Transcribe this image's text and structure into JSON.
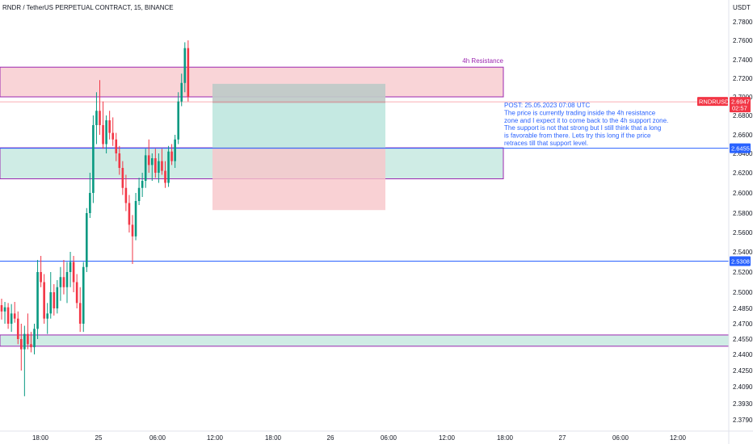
{
  "chart_data": {
    "type": "candlestick",
    "title": "RNDR / TetherUS PERPETUAL CONTRACT, 15, BINANCE",
    "currency_label": "USDT",
    "ylim": [
      2.37,
      2.79
    ],
    "price_ticks": [
      "2.7800",
      "2.7600",
      "2.7400",
      "2.7200",
      "2.7000",
      "2.6800",
      "2.6600",
      "2.6400",
      "2.6200",
      "2.6000",
      "2.5800",
      "2.5600",
      "2.5400",
      "2.5200",
      "2.5000",
      "2.4850",
      "2.4700",
      "2.4550",
      "2.4400",
      "2.4250",
      "2.4090",
      "2.3930",
      "2.3790"
    ],
    "time_ticks": [
      "18:00",
      "25",
      "06:00",
      "12:00",
      "18:00",
      "26",
      "06:00",
      "12:00",
      "18:00",
      "27",
      "06:00",
      "12:00"
    ],
    "grid": false,
    "candles": [
      {
        "o": 2.488,
        "h": 2.494,
        "l": 2.474,
        "c": 2.482
      },
      {
        "o": 2.482,
        "h": 2.491,
        "l": 2.47,
        "c": 2.486
      },
      {
        "o": 2.486,
        "h": 2.49,
        "l": 2.465,
        "c": 2.47
      },
      {
        "o": 2.47,
        "h": 2.489,
        "l": 2.462,
        "c": 2.48
      },
      {
        "o": 2.48,
        "h": 2.491,
        "l": 2.471,
        "c": 2.475
      },
      {
        "o": 2.475,
        "h": 2.482,
        "l": 2.45,
        "c": 2.455
      },
      {
        "o": 2.455,
        "h": 2.47,
        "l": 2.425,
        "c": 2.445
      },
      {
        "o": 2.445,
        "h": 2.468,
        "l": 2.4,
        "c": 2.46
      },
      {
        "o": 2.46,
        "h": 2.48,
        "l": 2.445,
        "c": 2.45
      },
      {
        "o": 2.45,
        "h": 2.462,
        "l": 2.442,
        "c": 2.447
      },
      {
        "o": 2.447,
        "h": 2.47,
        "l": 2.44,
        "c": 2.465
      },
      {
        "o": 2.465,
        "h": 2.532,
        "l": 2.455,
        "c": 2.52
      },
      {
        "o": 2.52,
        "h": 2.536,
        "l": 2.505,
        "c": 2.51
      },
      {
        "o": 2.51,
        "h": 2.518,
        "l": 2.47,
        "c": 2.475
      },
      {
        "o": 2.475,
        "h": 2.49,
        "l": 2.46,
        "c": 2.48
      },
      {
        "o": 2.48,
        "h": 2.52,
        "l": 2.475,
        "c": 2.5
      },
      {
        "o": 2.5,
        "h": 2.508,
        "l": 2.478,
        "c": 2.485
      },
      {
        "o": 2.485,
        "h": 2.512,
        "l": 2.48,
        "c": 2.505
      },
      {
        "o": 2.505,
        "h": 2.525,
        "l": 2.492,
        "c": 2.515
      },
      {
        "o": 2.515,
        "h": 2.532,
        "l": 2.498,
        "c": 2.505
      },
      {
        "o": 2.505,
        "h": 2.53,
        "l": 2.49,
        "c": 2.52
      },
      {
        "o": 2.52,
        "h": 2.54,
        "l": 2.505,
        "c": 2.53
      },
      {
        "o": 2.53,
        "h": 2.536,
        "l": 2.5,
        "c": 2.51
      },
      {
        "o": 2.51,
        "h": 2.518,
        "l": 2.485,
        "c": 2.49
      },
      {
        "o": 2.49,
        "h": 2.505,
        "l": 2.462,
        "c": 2.47
      },
      {
        "o": 2.47,
        "h": 2.53,
        "l": 2.462,
        "c": 2.525
      },
      {
        "o": 2.525,
        "h": 2.585,
        "l": 2.52,
        "c": 2.58
      },
      {
        "o": 2.58,
        "h": 2.62,
        "l": 2.575,
        "c": 2.6
      },
      {
        "o": 2.6,
        "h": 2.68,
        "l": 2.59,
        "c": 2.67
      },
      {
        "o": 2.67,
        "h": 2.705,
        "l": 2.65,
        "c": 2.685
      },
      {
        "o": 2.685,
        "h": 2.718,
        "l": 2.66,
        "c": 2.67
      },
      {
        "o": 2.67,
        "h": 2.695,
        "l": 2.645,
        "c": 2.65
      },
      {
        "o": 2.65,
        "h": 2.68,
        "l": 2.64,
        "c": 2.675
      },
      {
        "o": 2.675,
        "h": 2.685,
        "l": 2.655,
        "c": 2.662
      },
      {
        "o": 2.662,
        "h": 2.678,
        "l": 2.648,
        "c": 2.655
      },
      {
        "o": 2.655,
        "h": 2.662,
        "l": 2.632,
        "c": 2.64
      },
      {
        "o": 2.64,
        "h": 2.648,
        "l": 2.618,
        "c": 2.625
      },
      {
        "o": 2.625,
        "h": 2.632,
        "l": 2.598,
        "c": 2.605
      },
      {
        "o": 2.605,
        "h": 2.618,
        "l": 2.582,
        "c": 2.59
      },
      {
        "o": 2.59,
        "h": 2.598,
        "l": 2.56,
        "c": 2.568
      },
      {
        "o": 2.568,
        "h": 2.578,
        "l": 2.528,
        "c": 2.556
      },
      {
        "o": 2.556,
        "h": 2.6,
        "l": 2.552,
        "c": 2.592
      },
      {
        "o": 2.592,
        "h": 2.615,
        "l": 2.588,
        "c": 2.605
      },
      {
        "o": 2.605,
        "h": 2.62,
        "l": 2.596,
        "c": 2.612
      },
      {
        "o": 2.612,
        "h": 2.645,
        "l": 2.605,
        "c": 2.638
      },
      {
        "o": 2.638,
        "h": 2.655,
        "l": 2.62,
        "c": 2.628
      },
      {
        "o": 2.628,
        "h": 2.64,
        "l": 2.612,
        "c": 2.635
      },
      {
        "o": 2.635,
        "h": 2.645,
        "l": 2.615,
        "c": 2.62
      },
      {
        "o": 2.62,
        "h": 2.64,
        "l": 2.61,
        "c": 2.632
      },
      {
        "o": 2.632,
        "h": 2.645,
        "l": 2.618,
        "c": 2.622
      },
      {
        "o": 2.622,
        "h": 2.632,
        "l": 2.605,
        "c": 2.61
      },
      {
        "o": 2.61,
        "h": 2.648,
        "l": 2.606,
        "c": 2.642
      },
      {
        "o": 2.642,
        "h": 2.65,
        "l": 2.628,
        "c": 2.632
      },
      {
        "o": 2.632,
        "h": 2.66,
        "l": 2.625,
        "c": 2.655
      },
      {
        "o": 2.655,
        "h": 2.705,
        "l": 2.65,
        "c": 2.695
      },
      {
        "o": 2.695,
        "h": 2.725,
        "l": 2.69,
        "c": 2.715
      },
      {
        "o": 2.715,
        "h": 2.758,
        "l": 2.705,
        "c": 2.752
      },
      {
        "o": 2.752,
        "h": 2.76,
        "l": 2.695,
        "c": 2.7
      }
    ],
    "zones": [
      {
        "name": "4h Resistance",
        "top": 2.732,
        "bottom": 2.7,
        "fill": "#f7c6ca",
        "border": "#9c27b0",
        "from_candle": 0,
        "to_time": "18:00 (25)"
      },
      {
        "name": "",
        "top": 2.646,
        "bottom": 2.614,
        "fill": "#bfe6dc",
        "border": "#9c27b0",
        "from_candle": 0,
        "to_time": "18:00 (25)"
      },
      {
        "name": "",
        "top": 2.459,
        "bottom": 2.448,
        "fill": "#bfe6dc",
        "border": "#9c27b0",
        "from_candle": 0,
        "to_time": "right edge"
      }
    ],
    "position": {
      "type": "long",
      "entry": 2.6455,
      "target": 2.714,
      "stop": 2.583,
      "start_time": "12:00 (25)",
      "end_time": "06:00 (26)"
    },
    "horizontal_lines": [
      {
        "price": 2.6455,
        "label": "2.6455",
        "color": "#2962ff"
      },
      {
        "price": 2.5308,
        "label": "2.5308",
        "color": "#2962ff"
      }
    ],
    "last_price": {
      "symbol": "RNDRUSDT.P",
      "price": "2.6947",
      "countdown": "02:57",
      "color": "#f23645",
      "line_price": 2.6947
    },
    "annotation": {
      "color": "#2962ff",
      "lines": [
        "POST: 25.05.2023 07:08 UTC",
        "The price is currently trading inside the 4h resistance",
        "zone and I expect it to come back to the 4h support zone.",
        "The support is not that strong but I still think that a long",
        "is favorable from there. Lets try this long if the price",
        "retraces till that support level."
      ]
    },
    "colors": {
      "up": "#089981",
      "down": "#f23645",
      "position_profit": "#b2e2d8",
      "position_loss": "#f8c5c9",
      "position_grey": "#c3c3c3"
    }
  }
}
